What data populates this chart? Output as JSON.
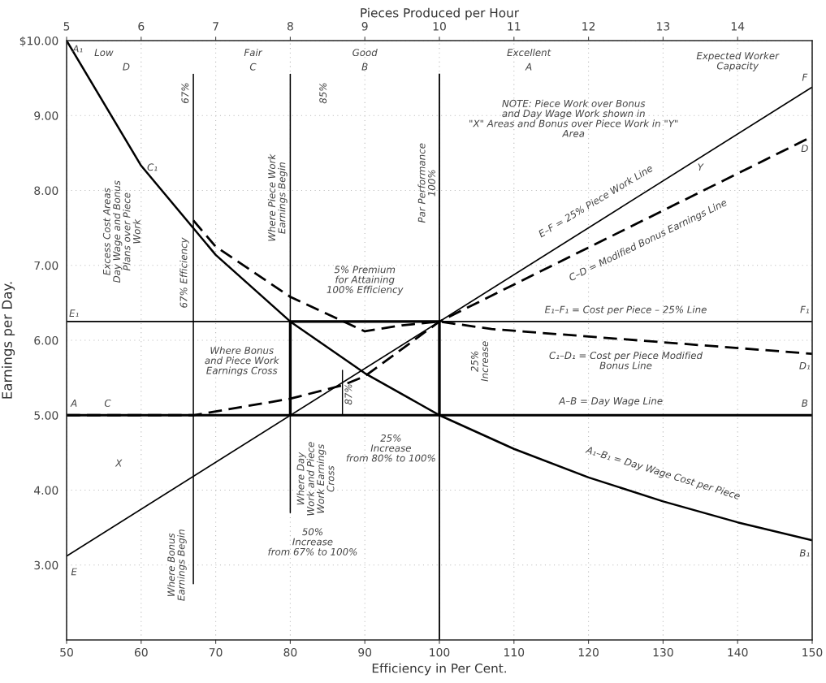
{
  "chart_data": {
    "type": "line",
    "x2label": "Pieces Produced per Hour",
    "xlabel": "Efficiency in Per Cent.",
    "ylabel": "Earnings per Day.",
    "xlim": [
      50,
      150
    ],
    "xticks": [
      50,
      60,
      70,
      80,
      90,
      100,
      110,
      120,
      130,
      140,
      150
    ],
    "ylim": [
      2,
      10
    ],
    "yticks": [
      {
        "value": 3,
        "label": "3.00"
      },
      {
        "value": 4,
        "label": "4.00"
      },
      {
        "value": 5,
        "label": "5.00"
      },
      {
        "value": 6,
        "label": "6.00"
      },
      {
        "value": 7,
        "label": "7.00"
      },
      {
        "value": 8,
        "label": "8.00"
      },
      {
        "value": 9,
        "label": "9.00"
      },
      {
        "value": 10,
        "label": "$10.00"
      }
    ],
    "x2lim": [
      5,
      15
    ],
    "x2ticks": [
      5,
      6,
      7,
      8,
      9,
      10,
      11,
      12,
      13,
      14
    ],
    "grid": true,
    "legend": false,
    "marker": "none",
    "series": [
      {
        "color": "#000000",
        "line_style": "solid",
        "x": [
          50,
          60,
          70,
          80,
          90,
          100,
          110,
          120,
          130,
          140,
          150
        ],
        "values": [
          10.0,
          8.33,
          7.14,
          6.25,
          5.56,
          5.0,
          4.55,
          4.17,
          3.85,
          3.57,
          3.33
        ]
      },
      {
        "color": "#000000",
        "line_style": "solid",
        "x": [
          50,
          150
        ],
        "values": [
          5.0,
          5.0
        ]
      },
      {
        "color": "#000000",
        "line_style": "solid",
        "x": [
          50,
          150
        ],
        "values": [
          3.12,
          9.38
        ]
      },
      {
        "color": "#000000",
        "line_style": "solid",
        "x": [
          50,
          150
        ],
        "values": [
          6.25,
          6.25
        ]
      },
      {
        "color": "#000000",
        "line_style": "dashed",
        "x": [
          50,
          67,
          70,
          80,
          87,
          90,
          100,
          150
        ],
        "values": [
          5.0,
          5.0,
          5.05,
          5.22,
          5.4,
          5.52,
          6.25,
          8.72
        ]
      },
      {
        "color": "#000000",
        "line_style": "dashed",
        "x": [
          67,
          70,
          80,
          90,
          95,
          100,
          107,
          150
        ],
        "values": [
          7.6,
          7.25,
          6.58,
          6.12,
          6.2,
          6.25,
          6.15,
          5.82
        ]
      },
      {
        "color": "#000000",
        "line_style": "solid",
        "x": [
          67,
          67
        ],
        "values": [
          9.55,
          2.75
        ]
      },
      {
        "color": "#000000",
        "line_style": "solid",
        "x": [
          80,
          80
        ],
        "values": [
          9.55,
          3.7
        ]
      },
      {
        "color": "#000000",
        "line_style": "solid",
        "x": [
          100,
          100
        ],
        "values": [
          9.55,
          2.0
        ]
      },
      {
        "color": "#000000",
        "line_style": "solid",
        "x": [
          80,
          80,
          100,
          100
        ],
        "values": [
          5.0,
          6.25,
          6.25,
          5.0
        ]
      },
      {
        "color": "#000000",
        "line_style": "solid",
        "x": [
          87,
          87
        ],
        "values": [
          5.6,
          5.0
        ]
      }
    ],
    "annotations": [
      "Low",
      "D",
      "Fair",
      "C",
      "Good",
      "B",
      "Excellent",
      "A",
      "Expected Worker\nCapacity",
      "67%",
      "85%",
      "Excess Cost Areas\nDay Wage and Bonus\nPlans over Piece\nWork",
      "67% Efficiency",
      "Where Piece Work\nEarnings Begin",
      "Par Performance\n100%",
      "5% Premium\nfor Attaining\n100% Efficiency",
      "NOTE: Piece Work over Bonus\nand Day Wage Work shown in\n\"X\" Areas and Bonus over Piece Work in \"Y\"\nArea",
      "E–F = 25% Piece Work Line",
      "C–D = Modified Bonus Earnings Line",
      "E₁–F₁ = Cost per Piece – 25% Line",
      "C₁–D₁ = Cost per Piece Modified\nBonus Line",
      "A–B = Day Wage Line",
      "A₁–B₁ = Day Wage Cost per Piece",
      "Where Bonus\nand Piece Work\nEarnings Cross",
      "87%",
      "25%\nIncrease",
      "Where Day\nWork and Piece\nWork Earnings\nCross",
      "25%\nIncrease\nfrom 80% to 100%",
      "Where Bonus\nEarnings Begin",
      "50%\nIncrease\nfrom 67% to 100%",
      "X",
      "Y",
      "A₁",
      "C₁",
      "E₁",
      "A",
      "C",
      "E",
      "F",
      "D",
      "F₁",
      "D₁",
      "B",
      "B₁"
    ]
  }
}
